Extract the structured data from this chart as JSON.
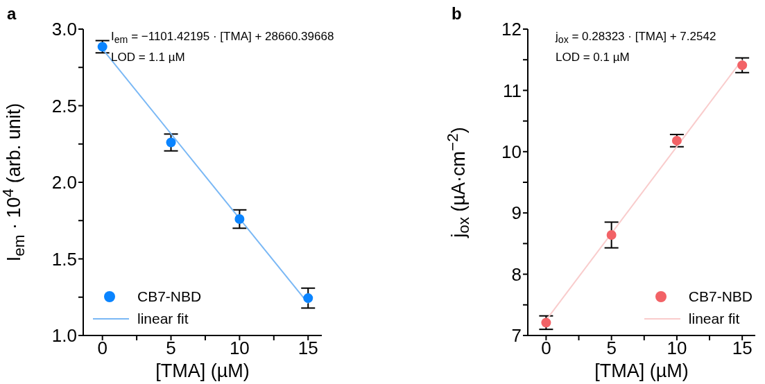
{
  "chart_data": [
    {
      "type": "scatter",
      "title": "a",
      "xlabel": "[TMA] (µM)",
      "ylabel": "I$_{em}$ · 10$^{4}$ (arb. unit)",
      "annotations": [
        "I$_{em}$ = −1101.42195 · [TMA] + 28660.39668",
        "LOD = 1.1 µM"
      ],
      "series": [
        {
          "name": "CB7-NBD",
          "marker": "circle",
          "color": "#0a84ff",
          "x": [
            0,
            5,
            10,
            15
          ],
          "values": [
            2.885,
            2.26,
            1.76,
            1.244
          ],
          "errors": [
            0.04,
            0.055,
            0.06,
            0.065
          ]
        },
        {
          "name": "linear fit",
          "type": "line",
          "marker": "none",
          "color": "#7ab8f5",
          "x": [
            0,
            15
          ],
          "values": [
            2.87,
            1.21
          ]
        }
      ],
      "xlim": [
        -1.4,
        16
      ],
      "xticks": [
        0,
        {
          "value": 2.5,
          "label": null
        },
        5,
        {
          "value": 7.5,
          "label": null
        },
        10,
        {
          "value": 12.5,
          "label": null
        },
        15
      ],
      "ylim": [
        1.0,
        3.0
      ],
      "yticks": [
        {
          "value": 1.0,
          "label": "1.0"
        },
        {
          "value": 1.25,
          "label": null
        },
        1.5,
        {
          "value": 1.75,
          "label": null
        },
        {
          "value": 2.0,
          "label": "2.0"
        },
        {
          "value": 2.25,
          "label": null
        },
        2.5,
        {
          "value": 2.75,
          "label": null
        },
        {
          "value": 3.0,
          "label": "3.0"
        }
      ],
      "grid": false,
      "legend": "bottom left"
    },
    {
      "type": "scatter",
      "title": "b",
      "xlabel": "[TMA] (µM)",
      "ylabel": "j$_{ox}$ (µA·cm$^{−2}$)",
      "annotations": [
        "j$_{ox}$ = 0.28323 · [TMA] + 7.2542",
        "LOD = 0.1 µM"
      ],
      "series": [
        {
          "name": "CB7-NBD",
          "marker": "circle",
          "color": "#f26266",
          "x": [
            0,
            5,
            10,
            15
          ],
          "values": [
            7.21,
            8.64,
            10.18,
            11.41
          ],
          "errors": [
            0.11,
            0.21,
            0.1,
            0.12
          ]
        },
        {
          "name": "linear fit",
          "type": "line",
          "marker": "none",
          "color": "#f9cccc",
          "x": [
            0,
            15
          ],
          "values": [
            7.25,
            11.5
          ]
        }
      ],
      "xlim": [
        -1.4,
        16
      ],
      "xticks": [
        0,
        {
          "value": 2.5,
          "label": null
        },
        5,
        {
          "value": 7.5,
          "label": null
        },
        10,
        {
          "value": 12.5,
          "label": null
        },
        15
      ],
      "ylim": [
        7,
        12
      ],
      "yticks": [
        7,
        {
          "value": 7.5,
          "label": null
        },
        8,
        {
          "value": 8.5,
          "label": null
        },
        9,
        {
          "value": 9.5,
          "label": null
        },
        10,
        {
          "value": 10.5,
          "label": null
        },
        11,
        {
          "value": 11.5,
          "label": null
        },
        12
      ],
      "grid": false,
      "legend": "bottom right"
    }
  ]
}
